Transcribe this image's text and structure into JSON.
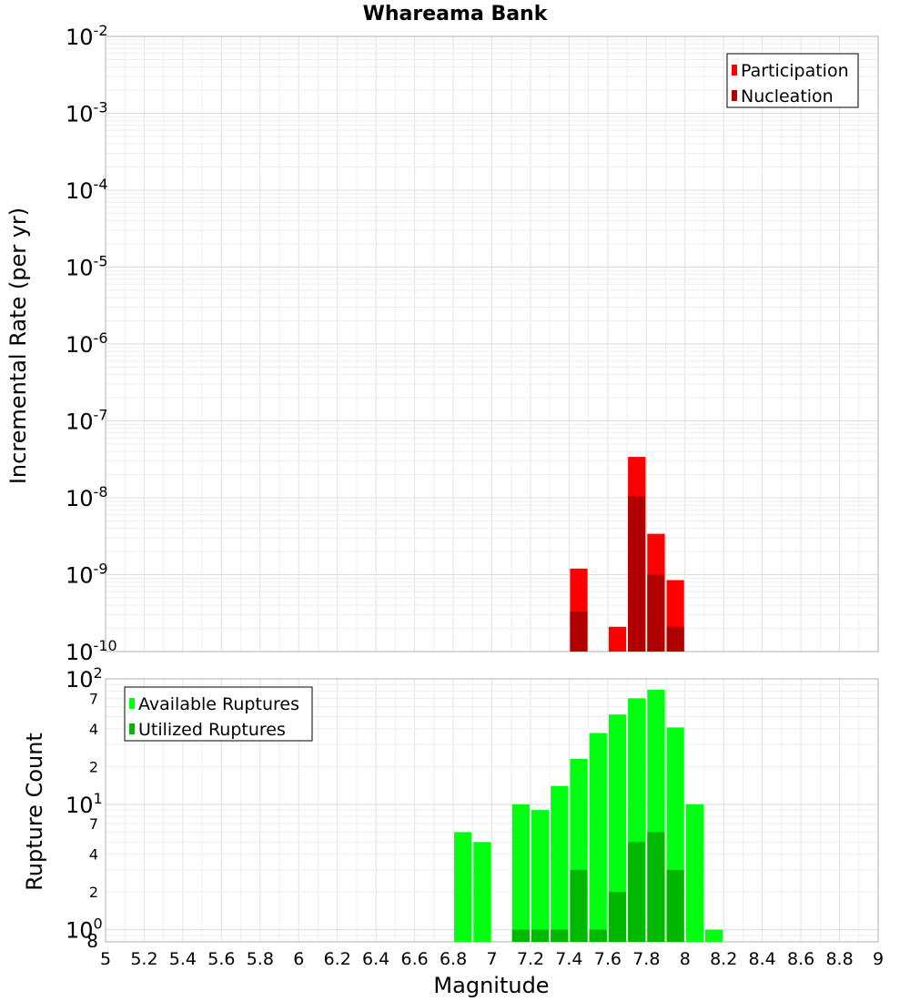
{
  "chart_data": [
    {
      "type": "bar",
      "title": "Whareama Bank",
      "xlabel": "Magnitude",
      "ylabel": "Incremental Rate (per yr)",
      "yscale": "log",
      "xlim": [
        5,
        9
      ],
      "ylim": [
        1e-10,
        0.01
      ],
      "bar_width": 0.1,
      "grid": true,
      "legend_position": "top-right",
      "y_ticks": [
        {
          "base": "10",
          "exp": "-10",
          "value": 1e-10
        },
        {
          "base": "10",
          "exp": "-9",
          "value": 1e-09
        },
        {
          "base": "10",
          "exp": "-8",
          "value": 1e-08
        },
        {
          "base": "10",
          "exp": "-7",
          "value": 1e-07
        },
        {
          "base": "10",
          "exp": "-6",
          "value": 1e-06
        },
        {
          "base": "10",
          "exp": "-5",
          "value": 1e-05
        },
        {
          "base": "10",
          "exp": "-4",
          "value": 0.0001
        },
        {
          "base": "10",
          "exp": "-3",
          "value": 0.001
        },
        {
          "base": "10",
          "exp": "-2",
          "value": 0.01
        }
      ],
      "series": [
        {
          "name": "Participation",
          "color": "#ff0000",
          "x": [
            7.45,
            7.65,
            7.75,
            7.85,
            7.95
          ],
          "values": [
            1.2e-09,
            2.1e-10,
            3.4e-08,
            3.4e-09,
            8.5e-10
          ]
        },
        {
          "name": "Nucleation",
          "color": "#b00000",
          "x": [
            7.45,
            7.75,
            7.85,
            7.95
          ],
          "values": [
            3.3e-10,
            1.05e-08,
            1e-09,
            2.1e-10
          ]
        }
      ]
    },
    {
      "type": "bar",
      "title": "",
      "xlabel": "Magnitude",
      "ylabel": "Rupture Count",
      "yscale": "log",
      "xlim": [
        5,
        9
      ],
      "ylim": [
        0.8,
        100
      ],
      "bar_width": 0.1,
      "grid": true,
      "legend_position": "top-left",
      "x_ticks": [
        "5",
        "5.2",
        "5.4",
        "5.6",
        "5.8",
        "6",
        "6.2",
        "6.4",
        "6.6",
        "6.8",
        "7",
        "7.2",
        "7.4",
        "7.6",
        "7.8",
        "8",
        "8.2",
        "8.4",
        "8.6",
        "8.8",
        "9"
      ],
      "y_major_ticks": [
        {
          "base": "10",
          "exp": "0",
          "value": 1
        },
        {
          "base": "10",
          "exp": "1",
          "value": 10
        },
        {
          "base": "10",
          "exp": "2",
          "value": 100
        }
      ],
      "y_minor_ticks": [
        {
          "label": "8",
          "value": 0.8
        },
        {
          "label": "2",
          "value": 2
        },
        {
          "label": "4",
          "value": 4
        },
        {
          "label": "7",
          "value": 7
        },
        {
          "label": "2",
          "value": 20
        },
        {
          "label": "4",
          "value": 40
        },
        {
          "label": "7",
          "value": 70
        }
      ],
      "series": [
        {
          "name": "Available Ruptures",
          "color": "#00ff10",
          "x": [
            6.85,
            6.95,
            7.15,
            7.25,
            7.35,
            7.45,
            7.55,
            7.65,
            7.75,
            7.85,
            7.95,
            8.05,
            8.15
          ],
          "values": [
            6,
            5,
            10,
            9,
            14,
            23,
            37,
            52,
            70,
            82,
            41,
            10,
            1
          ]
        },
        {
          "name": "Utilized Ruptures",
          "color": "#00b800",
          "x": [
            7.15,
            7.25,
            7.35,
            7.45,
            7.55,
            7.65,
            7.75,
            7.85,
            7.95
          ],
          "values": [
            1,
            1,
            1,
            3,
            1,
            2,
            5,
            6,
            3
          ]
        }
      ]
    }
  ]
}
